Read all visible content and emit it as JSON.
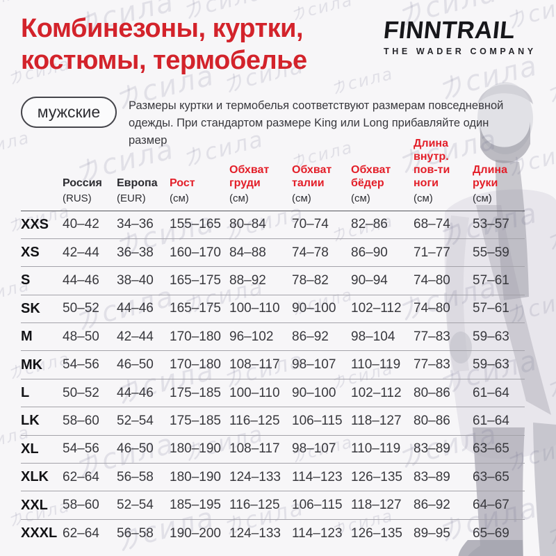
{
  "colors": {
    "title_red": "#d3232b",
    "header_red": "#e31e28",
    "text_dark": "#2b2b30",
    "background": "#f7f6f8"
  },
  "header": {
    "title_line1": "Комбинезоны, куртки,",
    "title_line2": "костюмы, термобелье",
    "badge": "мужские",
    "description": "Размеры куртки и термобелья соответствуют размерам повседневной одежды. При стандартом размере King или Long прибавляйте один размер"
  },
  "logo": {
    "name": "FINNTRAIL",
    "tagline": "THE WADER COMPANY"
  },
  "watermark": {
    "glyph": "力",
    "text": "сила"
  },
  "table": {
    "columns": [
      {
        "label": "",
        "unit": "",
        "color": "black"
      },
      {
        "label": "Россия",
        "unit": "(RUS)",
        "color": "black"
      },
      {
        "label": "Европа",
        "unit": "(EUR)",
        "color": "black"
      },
      {
        "label": "Рост",
        "unit": "(см)",
        "color": "red"
      },
      {
        "label": "Обхват груди",
        "unit": "(см)",
        "color": "red"
      },
      {
        "label": "Обхват талии",
        "unit": "(см)",
        "color": "red"
      },
      {
        "label": "Обхват бёдер",
        "unit": "(см)",
        "color": "red"
      },
      {
        "label": "Длина внутр. пов-ти ноги",
        "unit": "(см)",
        "color": "red"
      },
      {
        "label": "Длина руки",
        "unit": "(см)",
        "color": "red"
      }
    ],
    "rows": [
      [
        "XXS",
        "40–42",
        "34–36",
        "155–165",
        "80–84",
        "70–74",
        "82–86",
        "68–74",
        "53–57"
      ],
      [
        "XS",
        "42–44",
        "36–38",
        "160–170",
        "84–88",
        "74–78",
        "86–90",
        "71–77",
        "55–59"
      ],
      [
        "S",
        "44–46",
        "38–40",
        "165–175",
        "88–92",
        "78–82",
        "90–94",
        "74–80",
        "57–61"
      ],
      [
        "SK",
        "50–52",
        "44–46",
        "165–175",
        "100–110",
        "90–100",
        "102–112",
        "74–80",
        "57–61"
      ],
      [
        "M",
        "48–50",
        "42–44",
        "170–180",
        "96–102",
        "86–92",
        "98–104",
        "77–83",
        "59–63"
      ],
      [
        "MK",
        "54–56",
        "46–50",
        "170–180",
        "108–117",
        "98–107",
        "110–119",
        "77–83",
        "59–63"
      ],
      [
        "L",
        "50–52",
        "44–46",
        "175–185",
        "100–110",
        "90–100",
        "102–112",
        "80–86",
        "61–64"
      ],
      [
        "LK",
        "58–60",
        "52–54",
        "175–185",
        "116–125",
        "106–115",
        "118–127",
        "80–86",
        "61–64"
      ],
      [
        "XL",
        "54–56",
        "46–50",
        "180–190",
        "108–117",
        "98–107",
        "110–119",
        "83–89",
        "63–65"
      ],
      [
        "XLK",
        "62–64",
        "56–58",
        "180–190",
        "124–133",
        "114–123",
        "126–135",
        "83–89",
        "63–65"
      ],
      [
        "XXL",
        "58–60",
        "52–54",
        "185–195",
        "116–125",
        "106–115",
        "118–127",
        "86–92",
        "64–67"
      ],
      [
        "XXXL",
        "62–64",
        "56–58",
        "190–200",
        "124–133",
        "114–123",
        "126–135",
        "89–95",
        "65–69"
      ]
    ]
  }
}
